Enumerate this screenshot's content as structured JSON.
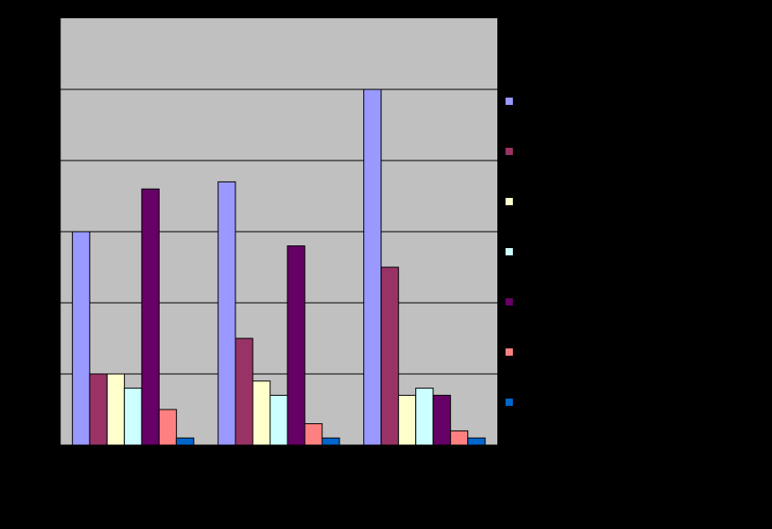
{
  "chart_data": {
    "type": "bar",
    "title": "",
    "xlabel": "",
    "ylabel": "",
    "categories": [
      "",
      "",
      ""
    ],
    "ylim": [
      0,
      30
    ],
    "y_ticks": [
      0,
      5,
      10,
      15,
      20,
      25,
      30
    ],
    "grid": true,
    "legend_position": "right",
    "plot_background": "#C0C0C0",
    "page_background": "#000000",
    "series": [
      {
        "color": "#9999FF",
        "values": [
          15,
          18.5,
          25
        ]
      },
      {
        "color": "#993366",
        "values": [
          5,
          7.5,
          12.5
        ]
      },
      {
        "color": "#FFFFCC",
        "values": [
          5,
          4.5,
          3.5
        ]
      },
      {
        "color": "#CCFFFF",
        "values": [
          4,
          3.5,
          4
        ]
      },
      {
        "color": "#660066",
        "values": [
          18,
          14,
          3.5
        ]
      },
      {
        "color": "#FF8080",
        "values": [
          2.5,
          1.5,
          1
        ]
      },
      {
        "color": "#0066CC",
        "values": [
          0.5,
          0.5,
          0.5
        ]
      }
    ]
  }
}
